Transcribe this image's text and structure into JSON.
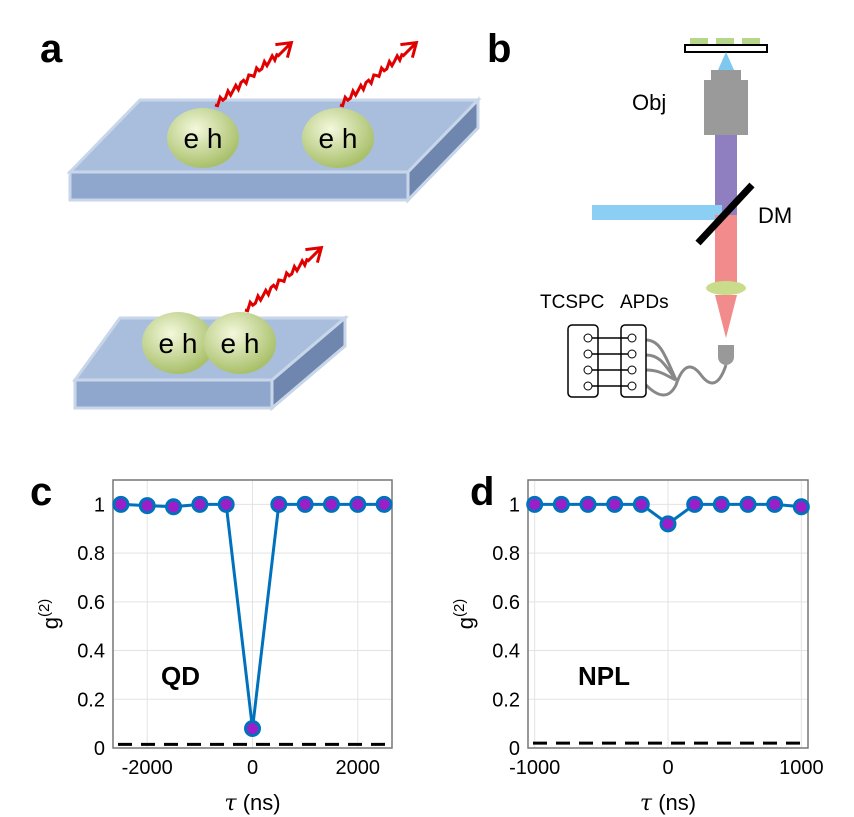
{
  "panels": {
    "a": "a",
    "b": "b",
    "c": "c",
    "d": "d"
  },
  "diagram_a": {
    "exciton": "e h"
  },
  "diagram_b": {
    "obj": "Obj",
    "dm": "DM",
    "tcspc": "TCSPC",
    "apds": "APDs"
  },
  "colors": {
    "line": "#0072BD",
    "marker": "#9B1FC9",
    "laser": "#7EC8F0",
    "emission": "#F08080",
    "slab": "#A8BEDC",
    "exciton": "#C9DC8C",
    "photon": "#E00000"
  },
  "chart_data": [
    {
      "type": "line",
      "panel": "c",
      "annotation": "QD",
      "xlabel": "τ (ns)",
      "ylabel": "g(2)",
      "xlim": [
        -2650,
        2650
      ],
      "ylim": [
        0,
        1.1
      ],
      "grid": true,
      "xticks": [
        -2000,
        0,
        2000
      ],
      "yticks": [
        0,
        0.2,
        0.4,
        0.6,
        0.8,
        1
      ],
      "x": [
        -2500,
        -2000,
        -1500,
        -1000,
        -500,
        0,
        500,
        1000,
        1500,
        2000,
        2500
      ],
      "y": [
        1.0,
        0.995,
        0.99,
        1.0,
        1.0,
        0.08,
        1.0,
        1.0,
        1.0,
        1.0,
        1.0
      ],
      "dashed_level": 0.015
    },
    {
      "type": "line",
      "panel": "d",
      "annotation": "NPL",
      "xlabel": "τ (ns)",
      "ylabel": "g(2)",
      "xlim": [
        -1050,
        1050
      ],
      "ylim": [
        0,
        1.1
      ],
      "grid": true,
      "xticks": [
        -1000,
        0,
        1000
      ],
      "yticks": [
        0,
        0.2,
        0.4,
        0.6,
        0.8,
        1
      ],
      "x": [
        -1000,
        -800,
        -600,
        -400,
        -200,
        0,
        200,
        400,
        600,
        800,
        1000
      ],
      "y": [
        1.0,
        1.0,
        1.0,
        1.0,
        1.0,
        0.92,
        1.0,
        1.0,
        1.0,
        1.0,
        0.99
      ],
      "dashed_level": 0.02
    }
  ]
}
